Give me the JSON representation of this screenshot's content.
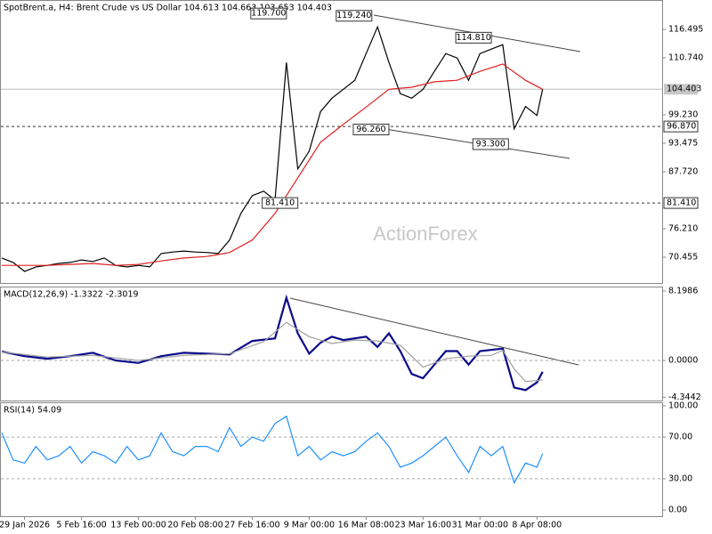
{
  "chart_data": [
    {
      "type": "line",
      "title": "SpotBrent.a, H4:  Brent Crude vs US Dollar  104.613 104.663 103.653 104.403",
      "watermark": "ActionForex",
      "xlim": [
        0,
        116
      ],
      "ylim": [
        65.24,
        122.43
      ],
      "yticks": [
        116.495,
        {
          "value": 110.74,
          "label": "110.740"
        },
        {
          "value": 99.23,
          "label": "99.230"
        },
        93.475,
        {
          "value": 87.72,
          "label": "87.720"
        },
        {
          "value": 76.21,
          "label": "76.210"
        },
        70.455
      ],
      "hlines": [
        104.403,
        {
          "value": 96.87,
          "label": "96.870"
        },
        {
          "value": 81.41,
          "label": "81.410"
        }
      ],
      "hline_styles": [
        "solid",
        "dashed",
        "dashed"
      ],
      "series": [
        {
          "color": "#000000",
          "x": [
            0,
            2,
            4,
            6,
            8,
            10,
            12,
            14,
            16,
            18,
            20,
            22,
            24,
            26,
            28,
            30,
            32,
            34,
            36,
            38,
            40,
            42,
            44,
            46,
            48,
            50,
            52,
            54,
            56,
            58,
            60,
            62,
            64,
            66,
            68,
            70,
            72,
            74,
            76,
            78,
            80,
            82,
            84,
            86,
            88,
            90,
            92,
            94,
            95
          ],
          "values": [
            70.3,
            69.4,
            67.6,
            68.5,
            68.8,
            69.2,
            69.4,
            69.9,
            69.6,
            70.3,
            68.8,
            68.5,
            68.8,
            68.5,
            71.2,
            71.5,
            71.7,
            71.5,
            71.4,
            71.2,
            73.9,
            79.3,
            82.9,
            83.8,
            82.0,
            109.8,
            88.3,
            91.9,
            99.9,
            102.6,
            104.4,
            106.2,
            111.6,
            117.0,
            109.8,
            103.5,
            102.6,
            104.4,
            108.0,
            111.6,
            110.7,
            106.2,
            111.6,
            112.5,
            113.4,
            96.4,
            100.9,
            99.1,
            104.403
          ]
        },
        {
          "color": "#e02020",
          "x": [
            0,
            4,
            8,
            12,
            16,
            20,
            24,
            28,
            32,
            36,
            40,
            44,
            48,
            52,
            56,
            60,
            64,
            68,
            72,
            76,
            80,
            84,
            88,
            92,
            95
          ],
          "values": [
            68.8,
            68.8,
            68.8,
            69.0,
            69.2,
            68.8,
            69.0,
            69.7,
            70.3,
            70.6,
            71.4,
            73.9,
            79.3,
            86.5,
            93.7,
            97.3,
            100.8,
            104.4,
            104.8,
            105.9,
            106.2,
            108.0,
            109.5,
            106.2,
            104.4
          ]
        }
      ],
      "annotations": [
        {
          "x": 50,
          "y": 119.7,
          "label": "119.700"
        },
        {
          "x": 65,
          "y": 119.24,
          "label": "119.240"
        },
        {
          "x": 86,
          "y": 114.81,
          "label": "114.810"
        },
        {
          "x": 68,
          "y": 96.26,
          "label": "96.260"
        },
        {
          "x": 89,
          "y": 93.3,
          "label": "93.300"
        },
        {
          "x": 52,
          "y": 81.41,
          "label": "81.410"
        }
      ]
    },
    {
      "type": "line",
      "title": "MACD(12,26,9) -1.3322 -2.3019",
      "xlim": [
        0,
        116
      ],
      "ylim": [
        -4.73,
        8.72
      ],
      "yticks": [
        8.1986,
        {
          "value": 0,
          "label": "0.0000"
        },
        -4.3442
      ],
      "zero_line": true,
      "series": [
        {
          "color": "#0a0a8a",
          "x": [
            0,
            4,
            8,
            12,
            16,
            20,
            24,
            28,
            32,
            36,
            40,
            44,
            48,
            50,
            52,
            54,
            56,
            58,
            60,
            64,
            66,
            68,
            70,
            72,
            74,
            76,
            78,
            80,
            82,
            84,
            88,
            90,
            92,
            94,
            95
          ],
          "values": [
            1.05,
            0.5,
            0.2,
            0.5,
            0.9,
            0,
            -0.3,
            0.5,
            0.9,
            0.8,
            0.7,
            2.3,
            2.6,
            7.4,
            3.2,
            0.8,
            2.1,
            2.8,
            2.4,
            2.8,
            1.6,
            3.2,
            1.1,
            -1.6,
            -2.1,
            -0.5,
            1.1,
            1.1,
            -0.5,
            1.1,
            1.4,
            -3.2,
            -3.5,
            -2.6,
            -1.3322
          ]
        },
        {
          "color": "#a0a0a0",
          "x": [
            0,
            8,
            16,
            24,
            32,
            40,
            46,
            50,
            54,
            58,
            62,
            66,
            70,
            74,
            78,
            82,
            86,
            88,
            90,
            92,
            95
          ],
          "values": [
            1.0,
            0.4,
            0.6,
            0,
            0.6,
            0.8,
            2.2,
            4.5,
            2.8,
            2.0,
            2.4,
            2.3,
            1.8,
            -0.8,
            0.2,
            0.5,
            0.6,
            1.2,
            -1.0,
            -2.5,
            -2.3019
          ]
        }
      ]
    },
    {
      "type": "line",
      "title": "RSI(14) 54.09",
      "xlim": [
        0,
        116
      ],
      "ylim": [
        -6,
        103.4
      ],
      "yticks": [
        {
          "value": 100,
          "label": "100.00"
        },
        {
          "value": 70,
          "label": "70.00"
        },
        {
          "value": 30,
          "label": "30.00"
        },
        {
          "value": 0,
          "label": "0.00"
        }
      ],
      "levels": [
        70,
        30
      ],
      "xticks": [
        {
          "value": 4,
          "label": "29 Jan 2026"
        },
        {
          "value": 14,
          "label": "5 Feb 16:00"
        },
        {
          "value": 24,
          "label": "13 Feb 00:00"
        },
        {
          "value": 34,
          "label": "20 Feb 08:00"
        },
        {
          "value": 44,
          "label": "27 Feb 16:00"
        },
        {
          "value": 54,
          "label": "9 Mar 00:00"
        },
        {
          "value": 64,
          "label": "16 Mar 08:00"
        },
        {
          "value": 74,
          "label": "23 Mar 16:00"
        },
        {
          "value": 84,
          "label": "31 Mar 00:00"
        },
        {
          "value": 94,
          "label": "8 Apr 08:00"
        }
      ],
      "series": [
        {
          "color": "#1e90ff",
          "x": [
            0,
            2,
            4,
            6,
            8,
            10,
            12,
            14,
            16,
            18,
            20,
            22,
            24,
            26,
            28,
            30,
            32,
            34,
            36,
            38,
            40,
            42,
            44,
            46,
            48,
            50,
            52,
            54,
            56,
            58,
            60,
            62,
            64,
            66,
            68,
            70,
            72,
            74,
            76,
            78,
            80,
            82,
            84,
            86,
            88,
            90,
            92,
            94,
            95
          ],
          "values": [
            74,
            48,
            45,
            61,
            48,
            52,
            61,
            45,
            56,
            52,
            45,
            61,
            48,
            52,
            74,
            56,
            52,
            61,
            61,
            56,
            79,
            61,
            70,
            66,
            83,
            90,
            52,
            61,
            48,
            56,
            52,
            56,
            66,
            74,
            61,
            41,
            45,
            52,
            61,
            70,
            52,
            36,
            61,
            52,
            61,
            26,
            45,
            41,
            54.09
          ]
        }
      ]
    }
  ]
}
